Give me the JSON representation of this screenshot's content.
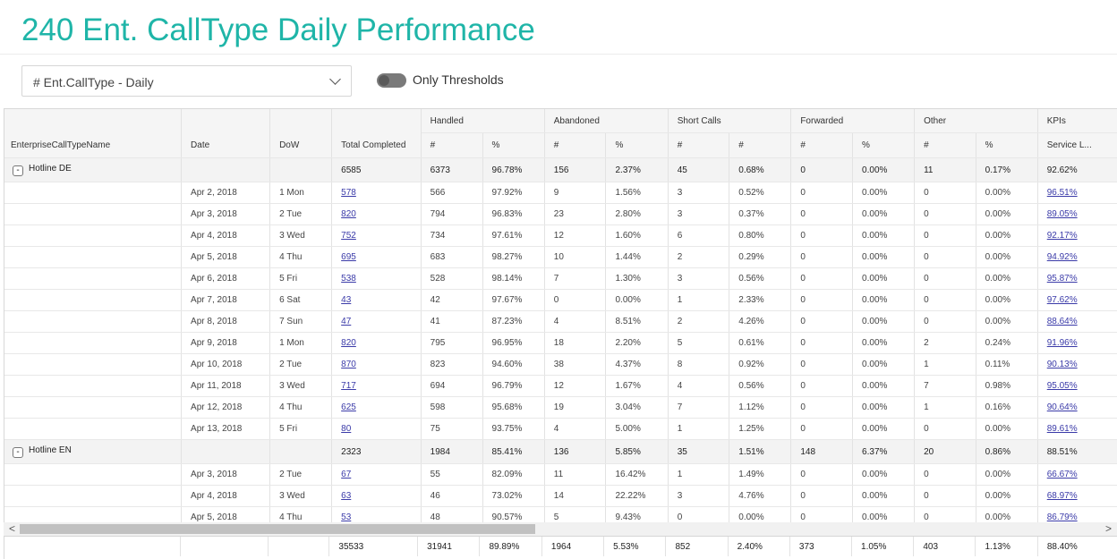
{
  "title": "240 Ent. CallType Daily Performance",
  "dropdown": {
    "value": "# Ent.CallType - Daily"
  },
  "toggle": {
    "label": "Only Thresholds",
    "on": false
  },
  "colors": {
    "title": "#1fb5a8",
    "link": "#3a3aa8"
  },
  "headers": {
    "fixed": [
      "EnterpriseCallTypeName",
      "Date",
      "DoW",
      "Total Completed"
    ],
    "groups": [
      "Handled",
      "Abandoned",
      "Short Calls",
      "Forwarded",
      "Other",
      "KPIs"
    ],
    "sub": [
      "#",
      "%",
      "#",
      "%",
      "#",
      "#",
      "#",
      "%",
      "#",
      "%",
      "Service L..."
    ]
  },
  "rows": [
    {
      "type": "group",
      "name": "Hotline DE",
      "expander": "-",
      "date": "",
      "dow": "",
      "total": "6585",
      "vals": [
        "6373",
        "96.78%",
        "156",
        "2.37%",
        "45",
        "0.68%",
        "0",
        "0.00%",
        "11",
        "0.17%",
        "92.62%"
      ]
    },
    {
      "type": "detail",
      "name": "",
      "date": "Apr 2, 2018",
      "dow": "1 Mon",
      "total": "578",
      "vals": [
        "566",
        "97.92%",
        "9",
        "1.56%",
        "3",
        "0.52%",
        "0",
        "0.00%",
        "0",
        "0.00%",
        "96.51%"
      ]
    },
    {
      "type": "detail",
      "name": "",
      "date": "Apr 3, 2018",
      "dow": "2 Tue",
      "total": "820",
      "vals": [
        "794",
        "96.83%",
        "23",
        "2.80%",
        "3",
        "0.37%",
        "0",
        "0.00%",
        "0",
        "0.00%",
        "89.05%"
      ]
    },
    {
      "type": "detail",
      "name": "",
      "date": "Apr 4, 2018",
      "dow": "3 Wed",
      "total": "752",
      "vals": [
        "734",
        "97.61%",
        "12",
        "1.60%",
        "6",
        "0.80%",
        "0",
        "0.00%",
        "0",
        "0.00%",
        "92.17%"
      ]
    },
    {
      "type": "detail",
      "name": "",
      "date": "Apr 5, 2018",
      "dow": "4 Thu",
      "total": "695",
      "vals": [
        "683",
        "98.27%",
        "10",
        "1.44%",
        "2",
        "0.29%",
        "0",
        "0.00%",
        "0",
        "0.00%",
        "94.92%"
      ]
    },
    {
      "type": "detail",
      "name": "",
      "date": "Apr 6, 2018",
      "dow": "5 Fri",
      "total": "538",
      "vals": [
        "528",
        "98.14%",
        "7",
        "1.30%",
        "3",
        "0.56%",
        "0",
        "0.00%",
        "0",
        "0.00%",
        "95.87%"
      ]
    },
    {
      "type": "detail",
      "name": "",
      "date": "Apr 7, 2018",
      "dow": "6 Sat",
      "total": "43",
      "vals": [
        "42",
        "97.67%",
        "0",
        "0.00%",
        "1",
        "2.33%",
        "0",
        "0.00%",
        "0",
        "0.00%",
        "97.62%"
      ]
    },
    {
      "type": "detail",
      "name": "",
      "date": "Apr 8, 2018",
      "dow": "7 Sun",
      "total": "47",
      "vals": [
        "41",
        "87.23%",
        "4",
        "8.51%",
        "2",
        "4.26%",
        "0",
        "0.00%",
        "0",
        "0.00%",
        "88.64%"
      ]
    },
    {
      "type": "detail",
      "name": "",
      "date": "Apr 9, 2018",
      "dow": "1 Mon",
      "total": "820",
      "vals": [
        "795",
        "96.95%",
        "18",
        "2.20%",
        "5",
        "0.61%",
        "0",
        "0.00%",
        "2",
        "0.24%",
        "91.96%"
      ]
    },
    {
      "type": "detail",
      "name": "",
      "date": "Apr 10, 2018",
      "dow": "2 Tue",
      "total": "870",
      "vals": [
        "823",
        "94.60%",
        "38",
        "4.37%",
        "8",
        "0.92%",
        "0",
        "0.00%",
        "1",
        "0.11%",
        "90.13%"
      ]
    },
    {
      "type": "detail",
      "name": "",
      "date": "Apr 11, 2018",
      "dow": "3 Wed",
      "total": "717",
      "vals": [
        "694",
        "96.79%",
        "12",
        "1.67%",
        "4",
        "0.56%",
        "0",
        "0.00%",
        "7",
        "0.98%",
        "95.05%"
      ]
    },
    {
      "type": "detail",
      "name": "",
      "date": "Apr 12, 2018",
      "dow": "4 Thu",
      "total": "625",
      "vals": [
        "598",
        "95.68%",
        "19",
        "3.04%",
        "7",
        "1.12%",
        "0",
        "0.00%",
        "1",
        "0.16%",
        "90.64%"
      ]
    },
    {
      "type": "detail",
      "name": "",
      "date": "Apr 13, 2018",
      "dow": "5 Fri",
      "total": "80",
      "vals": [
        "75",
        "93.75%",
        "4",
        "5.00%",
        "1",
        "1.25%",
        "0",
        "0.00%",
        "0",
        "0.00%",
        "89.61%"
      ]
    },
    {
      "type": "group",
      "name": "Hotline EN",
      "expander": "-",
      "date": "",
      "dow": "",
      "total": "2323",
      "vals": [
        "1984",
        "85.41%",
        "136",
        "5.85%",
        "35",
        "1.51%",
        "148",
        "6.37%",
        "20",
        "0.86%",
        "88.51%"
      ]
    },
    {
      "type": "detail",
      "name": "",
      "date": "Apr 3, 2018",
      "dow": "2 Tue",
      "total": "67",
      "vals": [
        "55",
        "82.09%",
        "11",
        "16.42%",
        "1",
        "1.49%",
        "0",
        "0.00%",
        "0",
        "0.00%",
        "66.67%"
      ]
    },
    {
      "type": "detail",
      "name": "",
      "date": "Apr 4, 2018",
      "dow": "3 Wed",
      "total": "63",
      "vals": [
        "46",
        "73.02%",
        "14",
        "22.22%",
        "3",
        "4.76%",
        "0",
        "0.00%",
        "0",
        "0.00%",
        "68.97%"
      ]
    },
    {
      "type": "detail",
      "name": "",
      "date": "Apr 5, 2018",
      "dow": "4 Thu",
      "total": "53",
      "vals": [
        "48",
        "90.57%",
        "5",
        "9.43%",
        "0",
        "0.00%",
        "0",
        "0.00%",
        "0",
        "0.00%",
        "86.79%"
      ]
    }
  ],
  "footer": {
    "total": "35533",
    "vals": [
      "31941",
      "89.89%",
      "1964",
      "5.53%",
      "852",
      "2.40%",
      "373",
      "1.05%",
      "403",
      "1.13%",
      "88.40%"
    ]
  },
  "scrollbar": {
    "left_arrow": "<",
    "right_arrow": ">"
  }
}
